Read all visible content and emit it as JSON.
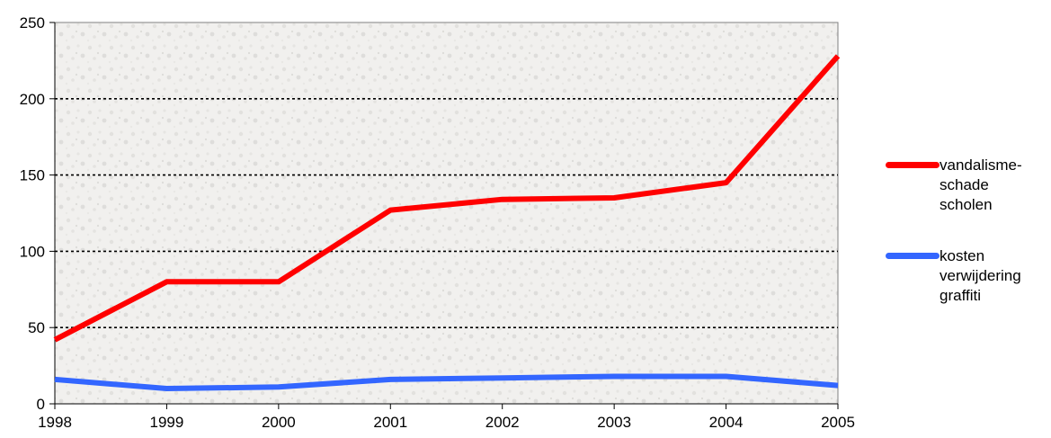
{
  "chart_data": {
    "type": "line",
    "title": "",
    "xlabel": "",
    "ylabel": "",
    "x": [
      "1998",
      "1999",
      "2000",
      "2001",
      "2002",
      "2003",
      "2004",
      "2005"
    ],
    "ylim": [
      0,
      250
    ],
    "yticks": [
      0,
      50,
      100,
      150,
      200,
      250
    ],
    "grid": "horizontal dotted",
    "legend_position": "right",
    "series": [
      {
        "name": "vandalisme-\nschade\nscholen",
        "color": "#ff0000",
        "values": [
          42,
          80,
          80,
          127,
          134,
          135,
          145,
          228
        ]
      },
      {
        "name": "kosten\nverwijdering\ngraffiti",
        "color": "#3366ff",
        "values": [
          16,
          10,
          11,
          16,
          17,
          18,
          18,
          12
        ]
      }
    ]
  }
}
